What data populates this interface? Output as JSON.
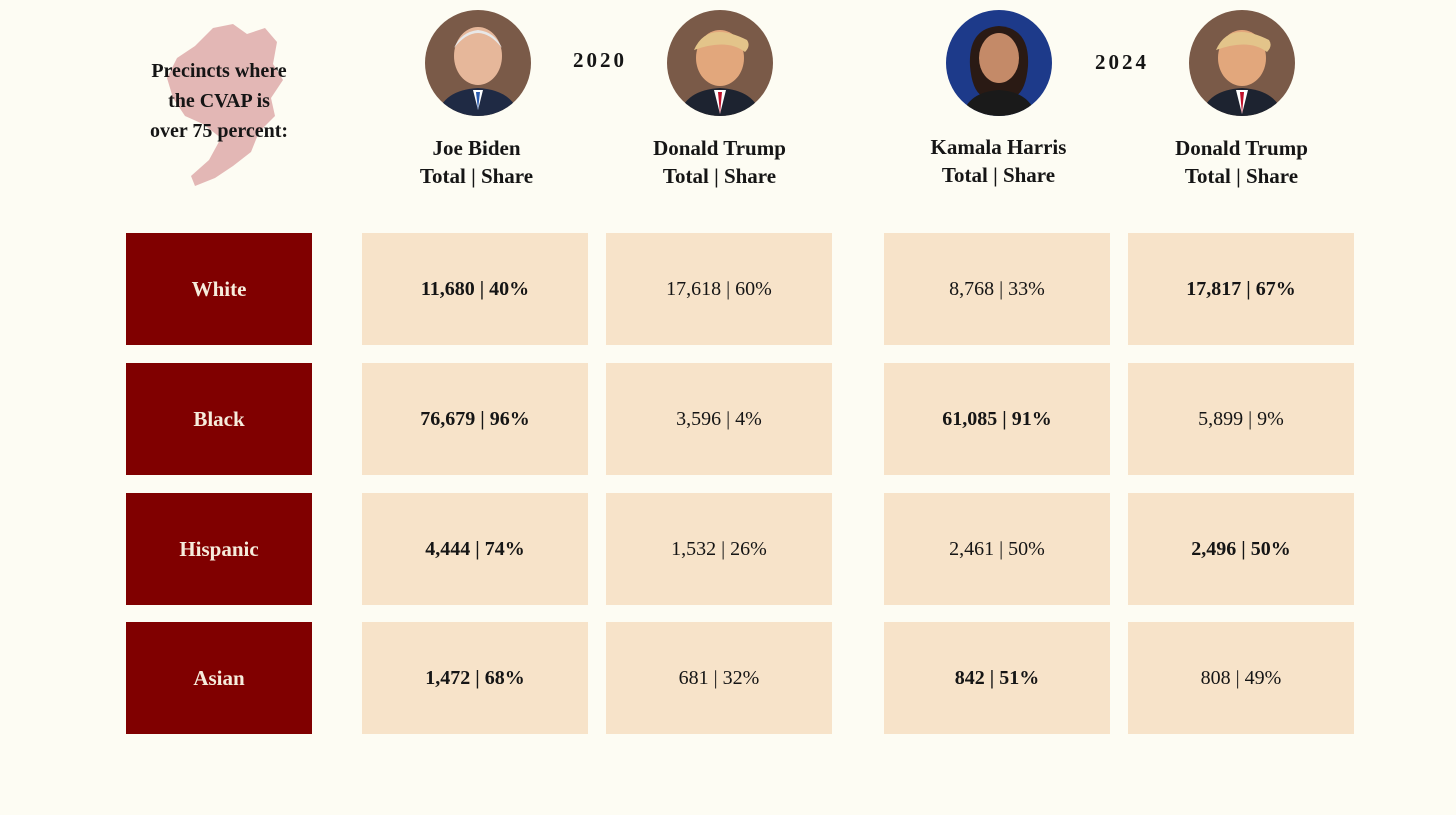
{
  "header": {
    "corner_label_lines": [
      "Precincts where",
      "the CVAP is",
      "over 75 percent:"
    ],
    "years": [
      "2020",
      "2024"
    ]
  },
  "candidates": [
    {
      "name": "Joe Biden",
      "subtitle": "Total | Share",
      "year": "2020",
      "portrait_icon": "joe-biden-portrait",
      "bg": "#7a5a48"
    },
    {
      "name": "Donald Trump",
      "subtitle": "Total | Share",
      "year": "2020",
      "portrait_icon": "donald-trump-portrait",
      "bg": "#7a5a48"
    },
    {
      "name": "Kamala Harris",
      "subtitle": "Total | Share",
      "year": "2024",
      "portrait_icon": "kamala-harris-portrait",
      "bg": "#1d3a8a"
    },
    {
      "name": "Donald Trump",
      "subtitle": "Total | Share",
      "year": "2024",
      "portrait_icon": "donald-trump-portrait",
      "bg": "#7a5a48"
    }
  ],
  "rows": [
    {
      "label": "White",
      "cells": [
        {
          "text": "11,680 | 40%",
          "bold": true
        },
        {
          "text": "17,618 | 60%",
          "bold": false
        },
        {
          "text": "8,768 | 33%",
          "bold": false
        },
        {
          "text": "17,817 | 67%",
          "bold": true
        }
      ]
    },
    {
      "label": "Black",
      "cells": [
        {
          "text": "76,679 | 96%",
          "bold": true
        },
        {
          "text": "3,596 | 4%",
          "bold": false
        },
        {
          "text": "61,085 | 91%",
          "bold": true
        },
        {
          "text": "5,899 | 9%",
          "bold": false
        }
      ]
    },
    {
      "label": "Hispanic",
      "cells": [
        {
          "text": "4,444 | 74%",
          "bold": true
        },
        {
          "text": "1,532 | 26%",
          "bold": false
        },
        {
          "text": "2,461 | 50%",
          "bold": false
        },
        {
          "text": "2,496 | 50%",
          "bold": true
        }
      ]
    },
    {
      "label": "Asian",
      "cells": [
        {
          "text": "1,472 | 68%",
          "bold": true
        },
        {
          "text": "681 | 32%",
          "bold": false
        },
        {
          "text": "842 | 51%",
          "bold": true
        },
        {
          "text": "808 | 49%",
          "bold": false
        }
      ]
    }
  ],
  "colors": {
    "row_label_bg": "#800000",
    "row_label_text": "#f6ecdc",
    "cell_bg": "#f7e3c9",
    "page_bg": "#fdfcf3",
    "map_tint": "#d9a0a0"
  },
  "chart_data": {
    "type": "table",
    "columns": [
      {
        "year": "2020",
        "candidate": "Joe Biden"
      },
      {
        "year": "2020",
        "candidate": "Donald Trump"
      },
      {
        "year": "2024",
        "candidate": "Kamala Harris"
      },
      {
        "year": "2024",
        "candidate": "Donald Trump"
      }
    ],
    "categories": [
      "White",
      "Black",
      "Hispanic",
      "Asian"
    ],
    "series": [
      {
        "name": "Joe Biden",
        "totals": [
          11680,
          76679,
          4444,
          1472
        ],
        "shares_percent": [
          40,
          96,
          74,
          68
        ]
      },
      {
        "name": "Donald Trump",
        "totals": [
          17618,
          3596,
          1532,
          681
        ],
        "shares_percent": [
          60,
          4,
          26,
          32
        ]
      },
      {
        "name": "Kamala Harris",
        "totals": [
          8768,
          61085,
          2461,
          842
        ],
        "shares_percent": [
          33,
          91,
          50,
          51
        ]
      },
      {
        "name": "Donald Trump",
        "totals": [
          17817,
          5899,
          2496,
          808
        ],
        "shares_percent": [
          67,
          9,
          50,
          49
        ]
      }
    ]
  }
}
